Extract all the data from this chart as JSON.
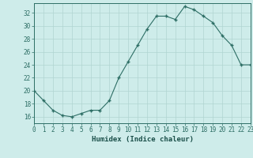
{
  "x": [
    0,
    1,
    2,
    3,
    4,
    5,
    6,
    7,
    8,
    9,
    10,
    11,
    12,
    13,
    14,
    15,
    16,
    17,
    18,
    19,
    20,
    21,
    22,
    23
  ],
  "y": [
    20,
    18.5,
    17,
    16.2,
    16,
    16.5,
    17,
    17,
    18.5,
    22,
    24.5,
    27,
    29.5,
    31.5,
    31.5,
    31,
    33,
    32.5,
    31.5,
    30.5,
    28.5,
    27,
    24,
    24
  ],
  "xlabel": "Humidex (Indice chaleur)",
  "xlim": [
    0,
    23
  ],
  "ylim": [
    15.0,
    33.5
  ],
  "yticks": [
    16,
    18,
    20,
    22,
    24,
    26,
    28,
    30,
    32
  ],
  "xtick_labels": [
    "0",
    "1",
    "2",
    "3",
    "4",
    "5",
    "6",
    "7",
    "8",
    "9",
    "10",
    "11",
    "12",
    "13",
    "14",
    "15",
    "16",
    "17",
    "18",
    "19",
    "20",
    "21",
    "22",
    "23"
  ],
  "line_color": "#2d6e65",
  "marker_color": "#2d6e65",
  "bg_color": "#ceecea",
  "grid_color": "#b0d4d1",
  "axis_color": "#2d6e65",
  "tick_label_color": "#2d6e65",
  "xlabel_color": "#1a4f49",
  "tick_fontsize": 5.5,
  "xlabel_fontsize": 6.5
}
